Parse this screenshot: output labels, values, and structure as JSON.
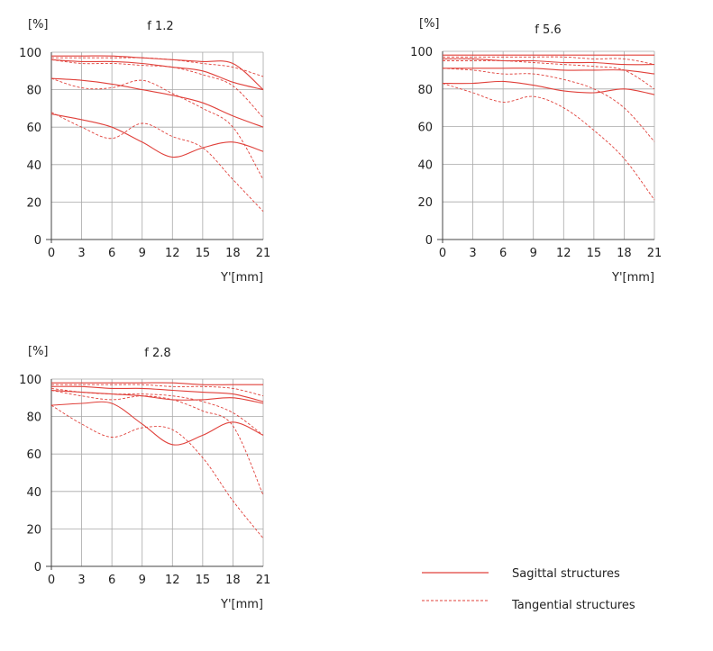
{
  "legend": {
    "sagittal": "Sagittal structures",
    "tangential": "Tangential structures"
  },
  "colors": {
    "curve": "#e0403a",
    "grid": "#a8a8a8",
    "axis": "#444444"
  },
  "chart_data": [
    {
      "type": "line",
      "title": "f 1.2",
      "ylabel": "[%]",
      "xlabel": "Y'[mm]",
      "xlim": [
        0,
        21
      ],
      "ylim": [
        0,
        100
      ],
      "xticks": [
        0,
        3,
        6,
        9,
        12,
        15,
        18,
        21
      ],
      "yticks": [
        0,
        20,
        40,
        60,
        80,
        100
      ],
      "grid": true,
      "series": [
        {
          "style": "sagittal",
          "x": [
            0,
            3,
            6,
            9,
            12,
            15,
            18,
            21
          ],
          "y": [
            98,
            98,
            98,
            97,
            96,
            95,
            94,
            80
          ]
        },
        {
          "style": "tangential",
          "x": [
            0,
            3,
            6,
            9,
            12,
            15,
            18,
            21
          ],
          "y": [
            97,
            97,
            97,
            97,
            96,
            94,
            92,
            87
          ]
        },
        {
          "style": "sagittal",
          "x": [
            0,
            3,
            6,
            9,
            12,
            15,
            18,
            21
          ],
          "y": [
            96,
            95,
            95,
            94,
            92,
            90,
            84,
            80
          ]
        },
        {
          "style": "tangential",
          "x": [
            0,
            3,
            6,
            9,
            12,
            15,
            18,
            21
          ],
          "y": [
            96,
            94,
            94,
            93,
            92,
            88,
            82,
            65
          ]
        },
        {
          "style": "sagittal",
          "x": [
            0,
            3,
            6,
            9,
            12,
            15,
            18,
            21
          ],
          "y": [
            86,
            85,
            83,
            80,
            77,
            73,
            66,
            60
          ]
        },
        {
          "style": "tangential",
          "x": [
            0,
            3,
            6,
            9,
            12,
            15,
            18,
            21
          ],
          "y": [
            86,
            81,
            81,
            85,
            78,
            70,
            60,
            32
          ]
        },
        {
          "style": "sagittal",
          "x": [
            0,
            3,
            6,
            9,
            12,
            15,
            18,
            21
          ],
          "y": [
            67,
            64,
            60,
            52,
            44,
            49,
            52,
            47
          ]
        },
        {
          "style": "tangential",
          "x": [
            0,
            3,
            6,
            9,
            12,
            15,
            18,
            21
          ],
          "y": [
            68,
            60,
            54,
            62,
            55,
            49,
            32,
            15
          ]
        }
      ]
    },
    {
      "type": "line",
      "title": "f 5.6",
      "ylabel": "[%]",
      "xlabel": "Y'[mm]",
      "xlim": [
        0,
        21
      ],
      "ylim": [
        0,
        100
      ],
      "xticks": [
        0,
        3,
        6,
        9,
        12,
        15,
        18,
        21
      ],
      "yticks": [
        0,
        20,
        40,
        60,
        80,
        100
      ],
      "grid": true,
      "series": [
        {
          "style": "sagittal",
          "x": [
            0,
            3,
            6,
            9,
            12,
            15,
            18,
            21
          ],
          "y": [
            98,
            98,
            98,
            98,
            98,
            98,
            98,
            98
          ]
        },
        {
          "style": "tangential",
          "x": [
            0,
            3,
            6,
            9,
            12,
            15,
            18,
            21
          ],
          "y": [
            97,
            97,
            97,
            97,
            97,
            96,
            96,
            93
          ]
        },
        {
          "style": "sagittal",
          "x": [
            0,
            3,
            6,
            9,
            12,
            15,
            18,
            21
          ],
          "y": [
            96,
            96,
            95,
            95,
            94,
            94,
            93,
            93
          ]
        },
        {
          "style": "tangential",
          "x": [
            0,
            3,
            6,
            9,
            12,
            15,
            18,
            21
          ],
          "y": [
            95,
            95,
            95,
            94,
            93,
            92,
            90,
            80
          ]
        },
        {
          "style": "sagittal",
          "x": [
            0,
            3,
            6,
            9,
            12,
            15,
            18,
            21
          ],
          "y": [
            91,
            91,
            91,
            91,
            90,
            90,
            90,
            88
          ]
        },
        {
          "style": "tangential",
          "x": [
            0,
            3,
            6,
            9,
            12,
            15,
            18,
            21
          ],
          "y": [
            91,
            90,
            88,
            88,
            85,
            80,
            70,
            52
          ]
        },
        {
          "style": "sagittal",
          "x": [
            0,
            3,
            6,
            9,
            12,
            15,
            18,
            21
          ],
          "y": [
            83,
            83,
            84,
            82,
            79,
            78,
            80,
            77
          ]
        },
        {
          "style": "tangential",
          "x": [
            0,
            3,
            6,
            9,
            12,
            15,
            18,
            21
          ],
          "y": [
            83,
            78,
            73,
            76,
            70,
            58,
            43,
            21
          ]
        }
      ]
    },
    {
      "type": "line",
      "title": "f 2.8",
      "ylabel": "[%]",
      "xlabel": "Y'[mm]",
      "xlim": [
        0,
        21
      ],
      "ylim": [
        0,
        100
      ],
      "xticks": [
        0,
        3,
        6,
        9,
        12,
        15,
        18,
        21
      ],
      "yticks": [
        0,
        20,
        40,
        60,
        80,
        100
      ],
      "grid": true,
      "series": [
        {
          "style": "sagittal",
          "x": [
            0,
            3,
            6,
            9,
            12,
            15,
            18,
            21
          ],
          "y": [
            98,
            98,
            98,
            98,
            98,
            97,
            97,
            97
          ]
        },
        {
          "style": "tangential",
          "x": [
            0,
            3,
            6,
            9,
            12,
            15,
            18,
            21
          ],
          "y": [
            97,
            97,
            97,
            97,
            96,
            96,
            95,
            91
          ]
        },
        {
          "style": "sagittal",
          "x": [
            0,
            3,
            6,
            9,
            12,
            15,
            18,
            21
          ],
          "y": [
            96,
            96,
            95,
            95,
            94,
            93,
            92,
            88
          ]
        },
        {
          "style": "tangential",
          "x": [
            0,
            3,
            6,
            9,
            12,
            15,
            18,
            21
          ],
          "y": [
            95,
            93,
            92,
            92,
            91,
            88,
            82,
            70
          ]
        },
        {
          "style": "sagittal",
          "x": [
            0,
            3,
            6,
            9,
            12,
            15,
            18,
            21
          ],
          "y": [
            94,
            93,
            92,
            91,
            89,
            89,
            90,
            87
          ]
        },
        {
          "style": "tangential",
          "x": [
            0,
            3,
            6,
            9,
            12,
            15,
            18,
            21
          ],
          "y": [
            94,
            91,
            89,
            91,
            89,
            83,
            75,
            38
          ]
        },
        {
          "style": "sagittal",
          "x": [
            0,
            3,
            6,
            9,
            12,
            15,
            18,
            21
          ],
          "y": [
            86,
            87,
            87,
            76,
            65,
            70,
            77,
            70
          ]
        },
        {
          "style": "tangential",
          "x": [
            0,
            3,
            6,
            9,
            12,
            15,
            18,
            21
          ],
          "y": [
            86,
            76,
            69,
            74,
            73,
            58,
            35,
            15
          ]
        }
      ]
    }
  ]
}
